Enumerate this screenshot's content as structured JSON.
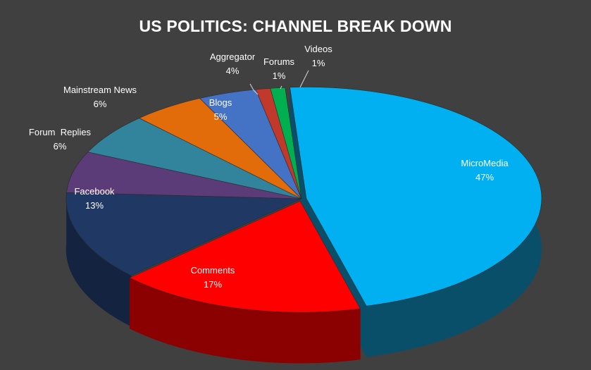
{
  "chart_data": {
    "type": "pie",
    "style": "3d-exploded",
    "title": "US POLITICS: CHANNEL BREAK DOWN",
    "slices": [
      {
        "name": "MicroMedia",
        "value": 47,
        "label": "47%",
        "color": "#00B0F0",
        "side": "#0A4F6A"
      },
      {
        "name": "Comments",
        "value": 17,
        "label": "17%",
        "color": "#FF0000",
        "side": "#8B0000"
      },
      {
        "name": "Facebook",
        "value": 13,
        "label": "13%",
        "color": "#1F3864",
        "side": "#14233F"
      },
      {
        "name": "Forum  Replies",
        "value": 6,
        "label": "6%",
        "color": "#5B3B78",
        "side": "#3A254D"
      },
      {
        "name": "Mainstream News",
        "value": 6,
        "label": "6%",
        "color": "#31849B",
        "side": "#1D5463"
      },
      {
        "name": "Blogs",
        "value": 5,
        "label": "5%",
        "color": "#E26B0A",
        "side": "#8E4306"
      },
      {
        "name": "Aggregator",
        "value": 4,
        "label": "4%",
        "color": "#4472C4",
        "side": "#2A4780"
      },
      {
        "name": "Forums",
        "value": 1,
        "label": "1%",
        "color": "#C0392B",
        "side": "#7A231B"
      },
      {
        "name": "Videos",
        "value": 1,
        "label": "1%",
        "color": "#00B050",
        "side": "#006B30"
      }
    ]
  }
}
